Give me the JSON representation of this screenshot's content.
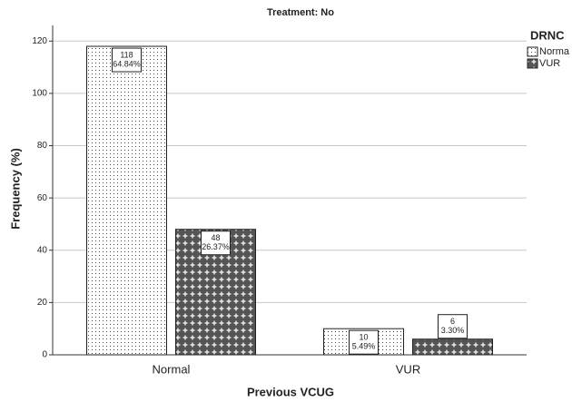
{
  "chart_data": {
    "type": "bar",
    "title": "Treatment: No",
    "x_label": "Previous VCUG",
    "y_label": "Frequency (%)",
    "legend_title": "DRNC",
    "categories": [
      "Normal",
      "VUR"
    ],
    "series": [
      {
        "name": "Norma",
        "pattern": "dots",
        "values": [
          118,
          10
        ],
        "percent_labels": [
          "64.84%",
          "5.49%"
        ]
      },
      {
        "name": "VUR",
        "pattern": "crosses",
        "values": [
          48,
          6
        ],
        "percent_labels": [
          "26.37%",
          "3.30%"
        ]
      }
    ],
    "ylim": [
      0,
      126
    ],
    "yticks": [
      0,
      20,
      40,
      60,
      80,
      100,
      120
    ],
    "grid": true,
    "legend": "right"
  }
}
